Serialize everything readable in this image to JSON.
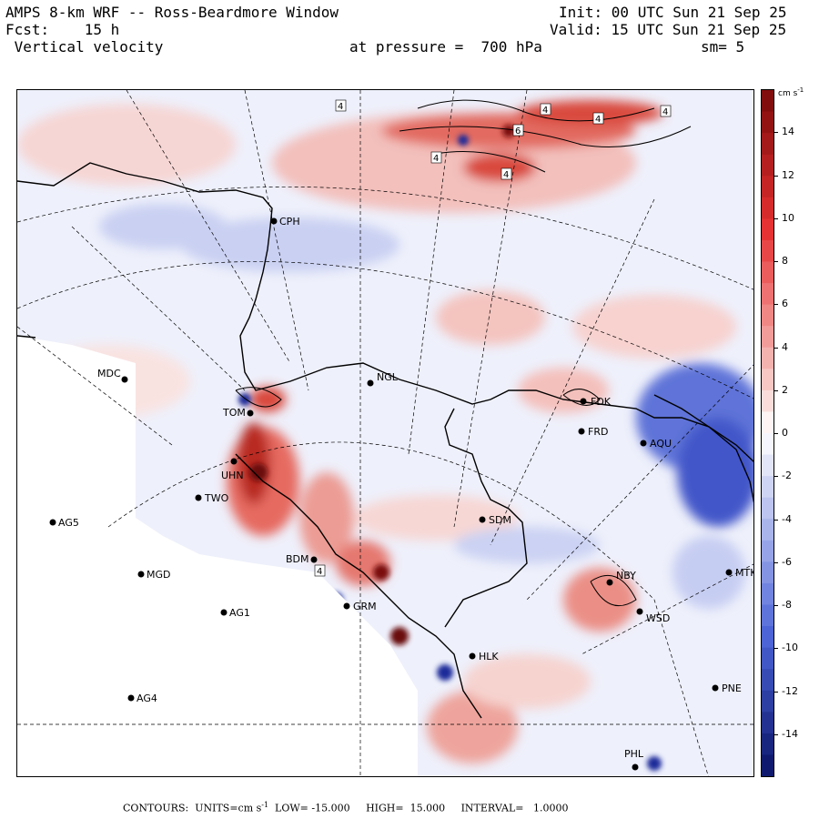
{
  "header": {
    "line1_left": "AMPS 8-km WRF -- Ross-Beardmore Window",
    "line2_left": "Fcst:    15 h",
    "line3_left": " Vertical velocity",
    "line1_right": "Init: 00 UTC Sun 21 Sep 25",
    "line2_right": "Valid: 15 UTC Sun 21 Sep 25",
    "pressure": "at pressure =  700 hPa",
    "smooth": "sm= 5"
  },
  "colorbar": {
    "unit": "cm s",
    "unit_exp": "-1",
    "min": -16,
    "max": 16,
    "ticks": [
      "14",
      "12",
      "10",
      "8",
      "6",
      "4",
      "2",
      "0",
      "-2",
      "-4",
      "-6",
      "-8",
      "-10",
      "-12",
      "-14"
    ],
    "colors": {
      "pos_dark": "#7a0a0a",
      "pos_mid": "#e53030",
      "pos_light": "#f7c9c6",
      "zero": "#ffffff",
      "neg_light": "#d0d6f4",
      "neg_mid": "#4a62d6",
      "neg_dark": "#0a1466"
    }
  },
  "stations": [
    {
      "code": "CPH"
    },
    {
      "code": "MDC"
    },
    {
      "code": "NGL"
    },
    {
      "code": "TOM"
    },
    {
      "code": "FDK"
    },
    {
      "code": "FRD"
    },
    {
      "code": "AQU"
    },
    {
      "code": "UHN"
    },
    {
      "code": "TWO"
    },
    {
      "code": "AG5"
    },
    {
      "code": "SDM"
    },
    {
      "code": "BDM"
    },
    {
      "code": "MGD"
    },
    {
      "code": "NBY"
    },
    {
      "code": "MTK"
    },
    {
      "code": "AG1"
    },
    {
      "code": "GRM"
    },
    {
      "code": "WSD"
    },
    {
      "code": "HLK"
    },
    {
      "code": "AG4"
    },
    {
      "code": "PNE"
    },
    {
      "code": "PHL"
    }
  ],
  "contour_labels": [
    "4",
    "4",
    "4",
    "4",
    "4",
    "6",
    "4",
    "4"
  ],
  "footer": {
    "text": "CONTOURS:  UNITS=cm s",
    "exp": "-1",
    "rest": "  LOW= -15.000     HIGH=  15.000     INTERVAL=   1.0000"
  }
}
